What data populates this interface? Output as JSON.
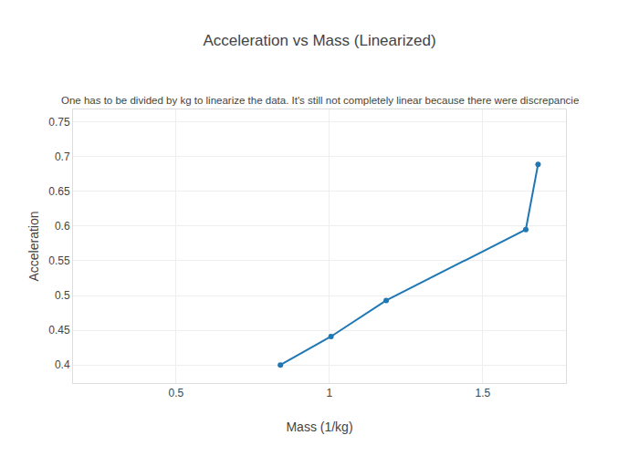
{
  "chart_data": {
    "type": "line",
    "title": "Acceleration vs Mass (Linearized)",
    "subtitle": "One has to be divided by kg to linearize the data. It's still not completely linear because there were discrepancie",
    "x_label": "Mass (1/kg)",
    "y_label": "Acceleration",
    "x": [
      0.84,
      1.005,
      1.185,
      1.64,
      1.68
    ],
    "values": [
      0.4,
      0.441,
      0.493,
      0.595,
      0.689
    ],
    "color": "#1f77b4",
    "marker": "circle",
    "line_style": "solid",
    "xlim": [
      0.164,
      1.771
    ],
    "xticks": [
      0.5,
      1,
      1.5
    ],
    "ylim": [
      0.374,
      0.768
    ],
    "yticks": [
      0.4,
      0.45,
      0.5,
      0.55,
      0.6,
      0.65,
      0.7,
      0.75
    ],
    "grid": true
  }
}
